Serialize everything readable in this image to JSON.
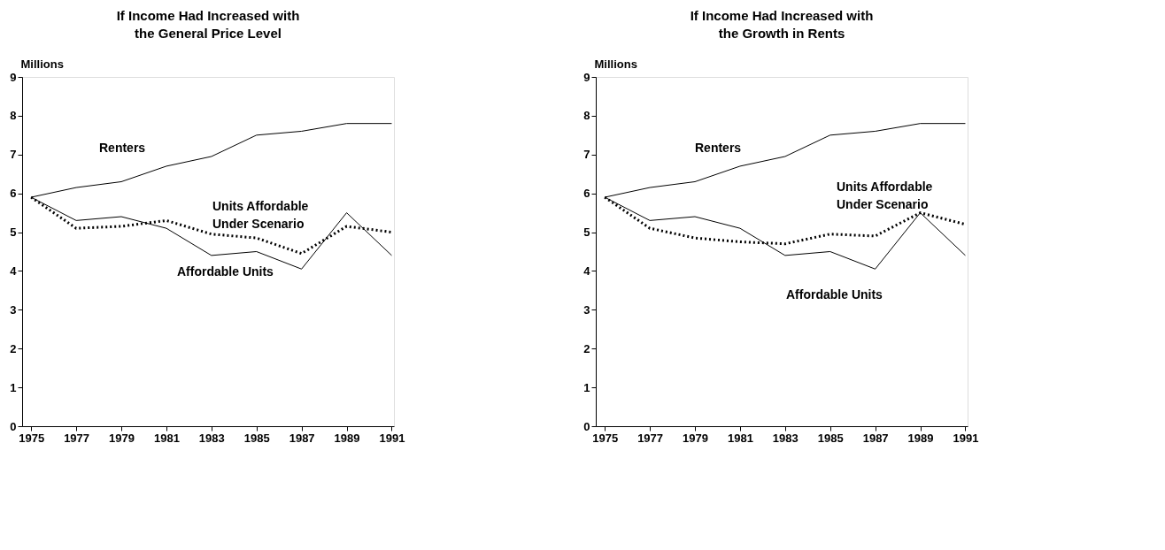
{
  "chart_data": [
    {
      "type": "line",
      "title": "If Income Had Increased with\nthe General Price Level",
      "ylabel": "Millions",
      "x": [
        1975,
        1977,
        1979,
        1981,
        1983,
        1985,
        1987,
        1989,
        1991
      ],
      "series": [
        {
          "name": "Renters",
          "color": "#000000",
          "line_style": "solid",
          "values": [
            5.9,
            6.15,
            6.3,
            6.7,
            6.95,
            7.5,
            7.6,
            7.8,
            7.8
          ]
        },
        {
          "name": "Units Affordable\nUnder Scenario",
          "color": "#000000",
          "line_style": "dotted",
          "values": [
            5.9,
            5.1,
            5.15,
            5.3,
            4.95,
            4.85,
            4.45,
            5.15,
            5.0
          ]
        },
        {
          "name": "Affordable Units",
          "color": "#000000",
          "line_style": "solid",
          "values": [
            5.9,
            5.3,
            5.4,
            5.1,
            4.4,
            4.5,
            4.05,
            5.5,
            4.4
          ]
        }
      ],
      "xlim": [
        1974.6,
        1991.1
      ],
      "xticks": [
        1975,
        1977,
        1979,
        1981,
        1983,
        1985,
        1987,
        1989,
        1991
      ],
      "ylim": [
        0,
        9
      ],
      "yticks": [
        0,
        1,
        2,
        3,
        4,
        5,
        6,
        7,
        8,
        9
      ],
      "grid": false,
      "marker": "none"
    },
    {
      "type": "line",
      "title": "If Income Had Increased with\nthe Growth in Rents",
      "ylabel": "Millions",
      "x": [
        1975,
        1977,
        1979,
        1981,
        1983,
        1985,
        1987,
        1989,
        1991
      ],
      "series": [
        {
          "name": "Renters",
          "color": "#000000",
          "line_style": "solid",
          "values": [
            5.9,
            6.15,
            6.3,
            6.7,
            6.95,
            7.5,
            7.6,
            7.8,
            7.8
          ]
        },
        {
          "name": "Units Affordable\nUnder Scenario",
          "color": "#000000",
          "line_style": "dotted",
          "values": [
            5.9,
            5.1,
            4.85,
            4.75,
            4.7,
            4.95,
            4.9,
            5.5,
            5.2
          ]
        },
        {
          "name": "Affordable Units",
          "color": "#000000",
          "line_style": "solid",
          "values": [
            5.9,
            5.3,
            5.4,
            5.1,
            4.4,
            4.5,
            4.05,
            5.5,
            4.4
          ]
        }
      ],
      "xlim": [
        1974.6,
        1991.1
      ],
      "xticks": [
        1975,
        1977,
        1979,
        1981,
        1983,
        1985,
        1987,
        1989,
        1991
      ],
      "ylim": [
        0,
        9
      ],
      "yticks": [
        0,
        1,
        2,
        3,
        4,
        5,
        6,
        7,
        8,
        9
      ],
      "grid": false,
      "marker": "none"
    }
  ]
}
